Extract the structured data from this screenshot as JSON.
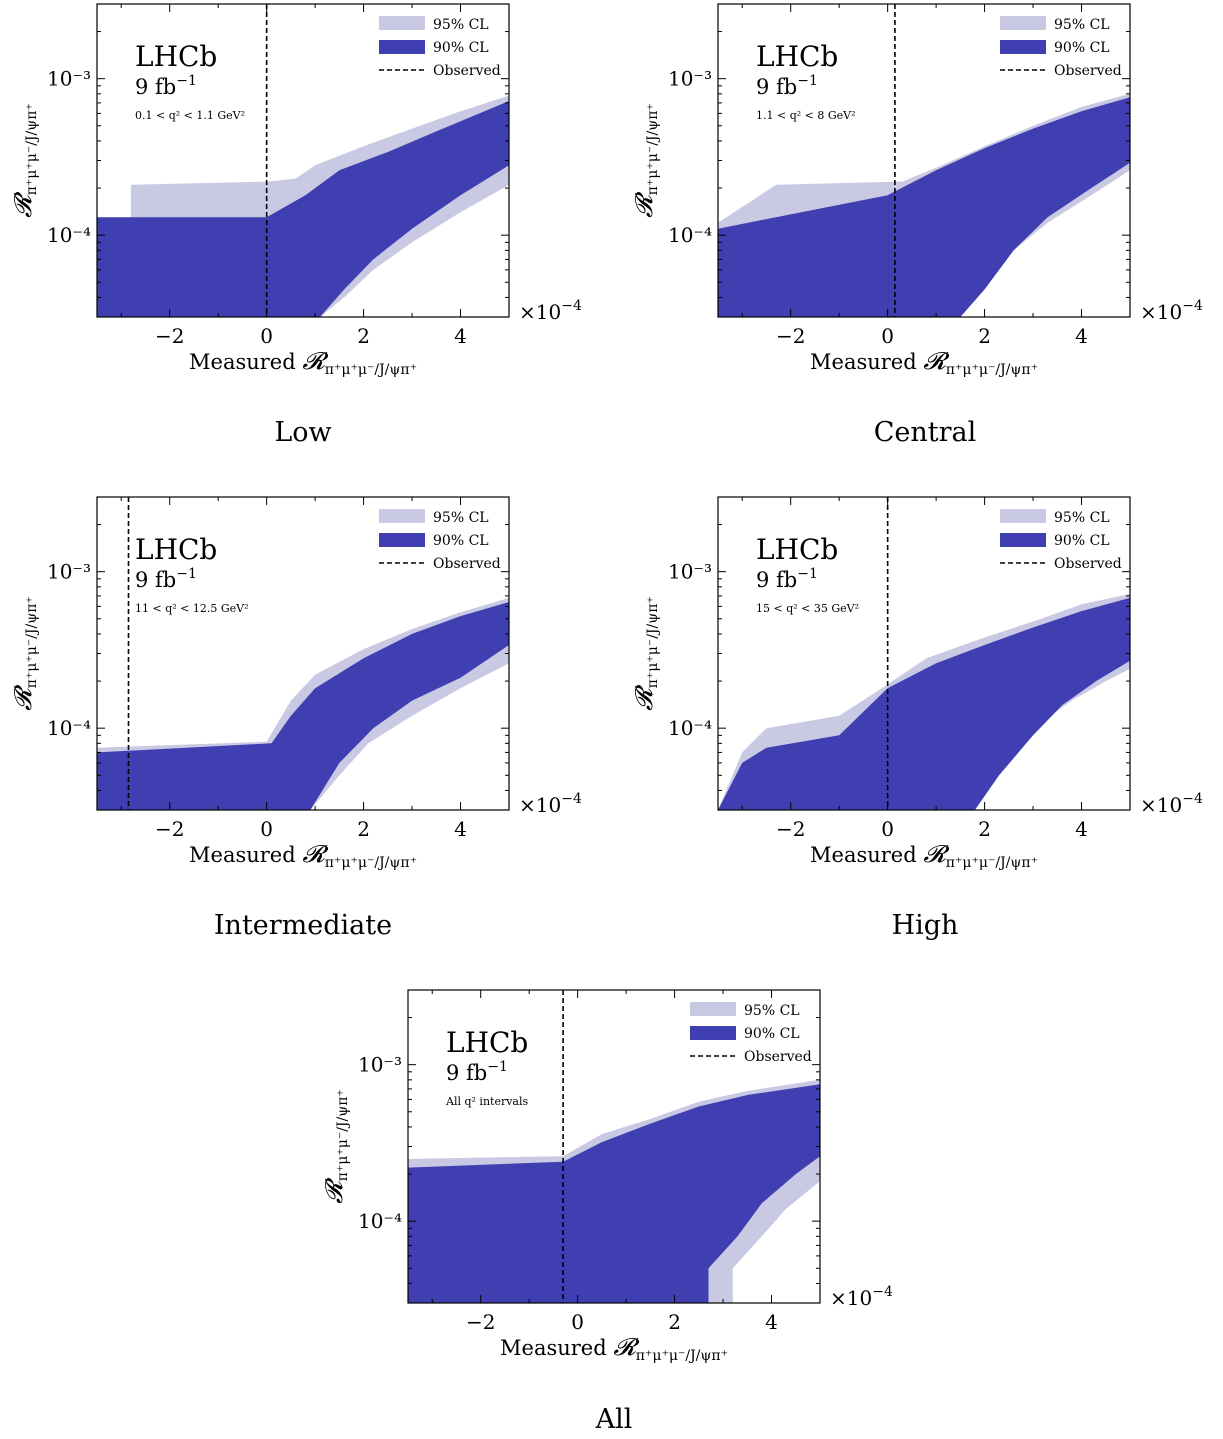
{
  "figure": {
    "legend": {
      "cl95": "95% CL",
      "cl90": "90% CL",
      "observed": "Observed"
    },
    "experiment": "LHCb",
    "luminosity": "9 fb",
    "luminosity_exp": "−1",
    "x_label_prefix": "Measured ",
    "x_label_R": "𝓡",
    "x_label_sub": "π⁺μ⁺μ⁻/J/ψπ⁺",
    "y_label_R": "𝓡",
    "y_label_sub": "π⁺μ⁺μ⁻/J/ψπ⁺",
    "x_multiplier": "×10",
    "x_multiplier_exp": "−4",
    "colors": {
      "cl95": "#c9c9e4",
      "cl90": "#3f3fb1",
      "observed": "#000000"
    }
  },
  "chart_data": [
    {
      "type": "area",
      "caption": "Low",
      "q2_label": "0.1 < q² < 1.1 GeV²",
      "xlim": [
        -3.5,
        5
      ],
      "ylim": [
        3e-05,
        0.003
      ],
      "yscale": "log",
      "x_ticks": [
        -2,
        0,
        2,
        4
      ],
      "y_ticks": [
        "10⁻⁴",
        "10⁻³"
      ],
      "y_tick_values": [
        0.0001,
        0.001
      ],
      "observed_x": 0.0,
      "band95": {
        "upper": [
          [
            -2.8,
            0.00021
          ],
          [
            0,
            0.00022
          ],
          [
            0.6,
            0.00023
          ],
          [
            1,
            0.00028
          ],
          [
            2,
            0.00037
          ],
          [
            3,
            0.00048
          ],
          [
            4,
            0.00062
          ],
          [
            5,
            0.00078
          ]
        ],
        "lower": [
          [
            1.1,
            3e-05
          ],
          [
            1.6,
            4e-05
          ],
          [
            2.2,
            6e-05
          ],
          [
            3,
            9e-05
          ],
          [
            4,
            0.00014
          ],
          [
            5,
            0.00021
          ]
        ],
        "left_edge": [
          [
            -2.8,
            0.00013
          ],
          [
            -2.8,
            0.00021
          ]
        ]
      },
      "band90": {
        "upper": [
          [
            -3.5,
            0.00013
          ],
          [
            0,
            0.00013
          ],
          [
            0.8,
            0.00018
          ],
          [
            1.5,
            0.00026
          ],
          [
            2.5,
            0.00034
          ],
          [
            3.5,
            0.00046
          ],
          [
            5,
            0.00072
          ]
        ],
        "lower": [
          [
            1.1,
            3e-05
          ],
          [
            1.6,
            4.5e-05
          ],
          [
            2.2,
            7e-05
          ],
          [
            3,
            0.00011
          ],
          [
            4,
            0.00018
          ],
          [
            5,
            0.00028
          ]
        ]
      }
    },
    {
      "type": "area",
      "caption": "Central",
      "q2_label": "1.1 < q² < 8 GeV²",
      "xlim": [
        -3.5,
        5
      ],
      "ylim": [
        3e-05,
        0.003
      ],
      "yscale": "log",
      "x_ticks": [
        -2,
        0,
        2,
        4
      ],
      "y_ticks": [
        "10⁻⁴",
        "10⁻³"
      ],
      "y_tick_values": [
        0.0001,
        0.001
      ],
      "observed_x": 0.15,
      "band95": {
        "upper": [
          [
            -3.5,
            0.00012
          ],
          [
            -2.3,
            0.00021
          ],
          [
            0.3,
            0.00022
          ],
          [
            1,
            0.00027
          ],
          [
            2,
            0.00037
          ],
          [
            3,
            0.0005
          ],
          [
            4,
            0.00066
          ],
          [
            5,
            0.0008
          ]
        ],
        "lower": [
          [
            1.5,
            3e-05
          ],
          [
            2.1,
            5e-05
          ],
          [
            2.6,
            8e-05
          ],
          [
            3.3,
            0.00012
          ],
          [
            4.2,
            0.00018
          ],
          [
            5,
            0.00026
          ]
        ]
      },
      "band90": {
        "upper": [
          [
            -3.5,
            0.00011
          ],
          [
            0,
            0.00018
          ],
          [
            1,
            0.00026
          ],
          [
            2,
            0.00036
          ],
          [
            3,
            0.00048
          ],
          [
            4,
            0.00062
          ],
          [
            5,
            0.00076
          ]
        ],
        "lower": [
          [
            1.5,
            3e-05
          ],
          [
            2,
            4.5e-05
          ],
          [
            2.6,
            8e-05
          ],
          [
            3.3,
            0.00013
          ],
          [
            4.2,
            0.0002
          ],
          [
            5,
            0.00029
          ]
        ]
      }
    },
    {
      "type": "area",
      "caption": "Intermediate",
      "q2_label": "11 < q² < 12.5 GeV²",
      "xlim": [
        -3.5,
        5
      ],
      "ylim": [
        3e-05,
        0.003
      ],
      "yscale": "log",
      "x_ticks": [
        -2,
        0,
        2,
        4
      ],
      "y_ticks": [
        "10⁻⁴",
        "10⁻³"
      ],
      "y_tick_values": [
        0.0001,
        0.001
      ],
      "observed_x": -2.85,
      "band95": {
        "upper": [
          [
            -3.5,
            7.5e-05
          ],
          [
            0,
            8.2e-05
          ],
          [
            0.5,
            0.00015
          ],
          [
            1,
            0.00022
          ],
          [
            2,
            0.00032
          ],
          [
            3,
            0.00043
          ],
          [
            4,
            0.00055
          ],
          [
            5,
            0.00068
          ]
        ],
        "lower": [
          [
            0.9,
            3e-05
          ],
          [
            1.5,
            5e-05
          ],
          [
            2.1,
            8e-05
          ],
          [
            3,
            0.00012
          ],
          [
            4,
            0.00018
          ],
          [
            5,
            0.00026
          ]
        ]
      },
      "band90": {
        "upper": [
          [
            -3.5,
            7e-05
          ],
          [
            0.1,
            8e-05
          ],
          [
            0.5,
            0.00012
          ],
          [
            1,
            0.00018
          ],
          [
            2,
            0.00028
          ],
          [
            3,
            0.0004
          ],
          [
            4,
            0.00052
          ],
          [
            5,
            0.00064
          ]
        ],
        "lower": [
          [
            0.9,
            3e-05
          ],
          [
            1.5,
            6e-05
          ],
          [
            2.2,
            0.0001
          ],
          [
            3,
            0.00015
          ],
          [
            4,
            0.00021
          ],
          [
            5,
            0.00034
          ]
        ]
      }
    },
    {
      "type": "area",
      "caption": "High",
      "q2_label": "15 < q² < 35 GeV²",
      "xlim": [
        -3.5,
        5
      ],
      "ylim": [
        3e-05,
        0.003
      ],
      "yscale": "log",
      "x_ticks": [
        -2,
        0,
        2,
        4
      ],
      "y_ticks": [
        "10⁻⁴",
        "10⁻³"
      ],
      "y_tick_values": [
        0.0001,
        0.001
      ],
      "observed_x": 0.0,
      "band95": {
        "upper": [
          [
            -3.5,
            3e-05
          ],
          [
            -3,
            7e-05
          ],
          [
            -2.5,
            0.0001
          ],
          [
            -1,
            0.00012
          ],
          [
            0,
            0.00019
          ],
          [
            0.8,
            0.00028
          ],
          [
            2,
            0.00038
          ],
          [
            3,
            0.00048
          ],
          [
            4,
            0.00062
          ],
          [
            5,
            0.00072
          ]
        ],
        "lower": [
          [
            1.8,
            3e-05
          ],
          [
            2.4,
            6e-05
          ],
          [
            3,
            0.0001
          ],
          [
            3.8,
            0.00015
          ],
          [
            4.5,
            0.0002
          ],
          [
            5,
            0.00024
          ]
        ]
      },
      "band90": {
        "upper": [
          [
            -3.5,
            3e-05
          ],
          [
            -3,
            6e-05
          ],
          [
            -2.5,
            7.5e-05
          ],
          [
            -1,
            9e-05
          ],
          [
            0,
            0.00018
          ],
          [
            1,
            0.00026
          ],
          [
            2,
            0.00034
          ],
          [
            3,
            0.00044
          ],
          [
            4,
            0.00056
          ],
          [
            5,
            0.00068
          ]
        ],
        "lower": [
          [
            1.8,
            3e-05
          ],
          [
            2.3,
            5e-05
          ],
          [
            3,
            9e-05
          ],
          [
            3.6,
            0.00014
          ],
          [
            4.3,
            0.0002
          ],
          [
            5,
            0.00027
          ]
        ]
      }
    },
    {
      "type": "area",
      "caption": "All",
      "q2_label": "All q² intervals",
      "xlim": [
        -3.5,
        5
      ],
      "ylim": [
        3e-05,
        0.003
      ],
      "yscale": "log",
      "x_ticks": [
        -2,
        0,
        2,
        4
      ],
      "y_ticks": [
        "10⁻⁴",
        "10⁻³"
      ],
      "y_tick_values": [
        0.0001,
        0.001
      ],
      "observed_x": -0.3,
      "band95": {
        "upper": [
          [
            -3.5,
            0.00025
          ],
          [
            -0.3,
            0.00026
          ],
          [
            0.5,
            0.00036
          ],
          [
            1.5,
            0.00045
          ],
          [
            2.5,
            0.00058
          ],
          [
            3.5,
            0.00068
          ],
          [
            5,
            0.0008
          ]
        ],
        "lower": [
          [
            3.2,
            3e-05
          ],
          [
            3.2,
            5e-05
          ],
          [
            3.8,
            8e-05
          ],
          [
            4.3,
            0.00012
          ],
          [
            5,
            0.00018
          ]
        ]
      },
      "band90": {
        "upper": [
          [
            -3.5,
            0.00022
          ],
          [
            -0.3,
            0.00024
          ],
          [
            0.5,
            0.00032
          ],
          [
            1.5,
            0.00042
          ],
          [
            2.5,
            0.00054
          ],
          [
            3.5,
            0.00064
          ],
          [
            5,
            0.00075
          ]
        ],
        "lower": [
          [
            2.7,
            3e-05
          ],
          [
            2.7,
            5e-05
          ],
          [
            3.3,
            8e-05
          ],
          [
            3.8,
            0.00013
          ],
          [
            4.5,
            0.0002
          ],
          [
            5,
            0.00026
          ]
        ]
      }
    }
  ]
}
